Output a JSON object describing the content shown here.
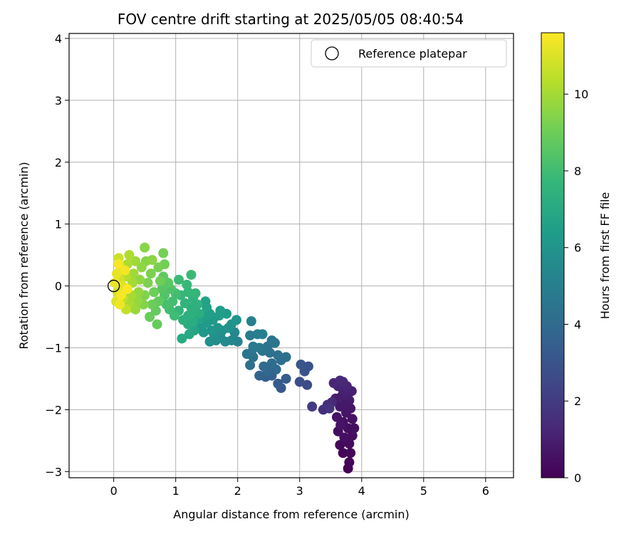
{
  "chart_data": {
    "type": "scatter",
    "title": "FOV centre drift starting at 2025/05/05 08:40:54",
    "xlabel": "Angular distance from reference (arcmin)",
    "ylabel": "Rotation from reference (arcmin)",
    "xlim": [
      -0.72,
      6.45
    ],
    "ylim": [
      -3.1,
      4.08
    ],
    "xticks": [
      "0",
      "1",
      "2",
      "3",
      "4",
      "5",
      "6"
    ],
    "yticks": [
      "−3",
      "−2",
      "−1",
      "0",
      "1",
      "2",
      "3",
      "4"
    ],
    "grid": true,
    "legend": {
      "placement": "top-right",
      "entries": [
        "Reference platepar"
      ]
    },
    "reference_point": {
      "x": 0,
      "y": 0,
      "label": "Reference platepar"
    },
    "colorbar": {
      "label": "Hours from first FF file",
      "colormap": "viridis",
      "range": [
        0,
        11.6
      ],
      "ticks": [
        "0",
        "2",
        "4",
        "6",
        "8",
        "10"
      ]
    },
    "points_note": "x = angular distance (arcmin), y = rotation (arcmin), c = hours from first FF file",
    "points": [
      {
        "x": 3.78,
        "y": -2.95,
        "c": 0.05
      },
      {
        "x": 3.8,
        "y": -2.85,
        "c": 0.1
      },
      {
        "x": 3.7,
        "y": -2.7,
        "c": 0.15
      },
      {
        "x": 3.82,
        "y": -2.7,
        "c": 0.2
      },
      {
        "x": 3.65,
        "y": -2.57,
        "c": 0.25
      },
      {
        "x": 3.75,
        "y": -2.5,
        "c": 0.3
      },
      {
        "x": 3.85,
        "y": -2.42,
        "c": 0.35
      },
      {
        "x": 3.62,
        "y": -2.35,
        "c": 0.4
      },
      {
        "x": 3.78,
        "y": -2.3,
        "c": 0.45
      },
      {
        "x": 3.7,
        "y": -2.2,
        "c": 0.5
      },
      {
        "x": 3.85,
        "y": -2.15,
        "c": 0.55
      },
      {
        "x": 3.6,
        "y": -2.12,
        "c": 0.6
      },
      {
        "x": 3.75,
        "y": -2.05,
        "c": 0.65
      },
      {
        "x": 3.82,
        "y": -1.98,
        "c": 0.7
      },
      {
        "x": 3.65,
        "y": -1.95,
        "c": 0.75
      },
      {
        "x": 3.72,
        "y": -1.9,
        "c": 0.8
      },
      {
        "x": 3.8,
        "y": -1.85,
        "c": 0.85
      },
      {
        "x": 3.58,
        "y": -1.82,
        "c": 0.9
      },
      {
        "x": 3.68,
        "y": -1.78,
        "c": 0.95
      },
      {
        "x": 3.78,
        "y": -1.75,
        "c": 1.0
      },
      {
        "x": 3.84,
        "y": -1.7,
        "c": 1.05
      },
      {
        "x": 3.7,
        "y": -1.68,
        "c": 1.1
      },
      {
        "x": 3.62,
        "y": -1.62,
        "c": 1.15
      },
      {
        "x": 3.76,
        "y": -1.62,
        "c": 1.2
      },
      {
        "x": 3.55,
        "y": -1.57,
        "c": 1.25
      },
      {
        "x": 3.7,
        "y": -1.55,
        "c": 1.3
      },
      {
        "x": 3.65,
        "y": -1.53,
        "c": 1.35
      },
      {
        "x": 3.8,
        "y": -2.55,
        "c": 0.4
      },
      {
        "x": 3.72,
        "y": -2.45,
        "c": 0.5
      },
      {
        "x": 3.66,
        "y": -2.25,
        "c": 0.6
      },
      {
        "x": 3.88,
        "y": -2.3,
        "c": 0.45
      },
      {
        "x": 3.52,
        "y": -1.88,
        "c": 1.4
      },
      {
        "x": 3.45,
        "y": -1.92,
        "c": 1.5
      },
      {
        "x": 3.38,
        "y": -2.0,
        "c": 1.6
      },
      {
        "x": 3.48,
        "y": -1.98,
        "c": 1.7
      },
      {
        "x": 3.2,
        "y": -1.95,
        "c": 2.0
      },
      {
        "x": 3.12,
        "y": -1.6,
        "c": 2.6
      },
      {
        "x": 3.0,
        "y": -1.55,
        "c": 2.7
      },
      {
        "x": 3.08,
        "y": -1.38,
        "c": 2.9
      },
      {
        "x": 3.14,
        "y": -1.3,
        "c": 3.0
      },
      {
        "x": 3.02,
        "y": -1.27,
        "c": 3.1
      },
      {
        "x": 2.7,
        "y": -1.65,
        "c": 3.2
      },
      {
        "x": 2.65,
        "y": -1.58,
        "c": 3.3
      },
      {
        "x": 2.78,
        "y": -1.5,
        "c": 3.4
      },
      {
        "x": 2.55,
        "y": -1.45,
        "c": 3.5
      },
      {
        "x": 2.45,
        "y": -1.47,
        "c": 3.6
      },
      {
        "x": 2.35,
        "y": -1.45,
        "c": 3.7
      },
      {
        "x": 2.48,
        "y": -1.38,
        "c": 3.8
      },
      {
        "x": 2.62,
        "y": -1.35,
        "c": 3.9
      },
      {
        "x": 2.42,
        "y": -1.3,
        "c": 4.0
      },
      {
        "x": 2.55,
        "y": -1.25,
        "c": 4.1
      },
      {
        "x": 2.7,
        "y": -1.2,
        "c": 4.15
      },
      {
        "x": 2.78,
        "y": -1.15,
        "c": 4.2
      },
      {
        "x": 2.65,
        "y": -1.12,
        "c": 4.25
      },
      {
        "x": 2.52,
        "y": -1.08,
        "c": 4.3
      },
      {
        "x": 2.4,
        "y": -1.05,
        "c": 4.35
      },
      {
        "x": 2.48,
        "y": -0.98,
        "c": 4.4
      },
      {
        "x": 2.6,
        "y": -0.92,
        "c": 4.45
      },
      {
        "x": 2.55,
        "y": -0.88,
        "c": 4.5
      },
      {
        "x": 2.2,
        "y": -1.28,
        "c": 4.2
      },
      {
        "x": 2.25,
        "y": -1.15,
        "c": 4.3
      },
      {
        "x": 2.15,
        "y": -1.1,
        "c": 4.4
      },
      {
        "x": 2.22,
        "y": -1.08,
        "c": 4.5
      },
      {
        "x": 2.35,
        "y": -1.0,
        "c": 4.6
      },
      {
        "x": 2.25,
        "y": -0.98,
        "c": 4.7
      },
      {
        "x": 2.2,
        "y": -0.8,
        "c": 4.8
      },
      {
        "x": 2.32,
        "y": -0.78,
        "c": 4.9
      },
      {
        "x": 2.4,
        "y": -0.78,
        "c": 5.0
      },
      {
        "x": 2.22,
        "y": -0.57,
        "c": 5.1
      },
      {
        "x": 2.0,
        "y": -0.9,
        "c": 5.2
      },
      {
        "x": 1.9,
        "y": -0.88,
        "c": 5.3
      },
      {
        "x": 1.95,
        "y": -0.75,
        "c": 5.4
      },
      {
        "x": 1.8,
        "y": -0.9,
        "c": 5.5
      },
      {
        "x": 1.72,
        "y": -0.82,
        "c": 5.6
      },
      {
        "x": 1.65,
        "y": -0.88,
        "c": 5.7
      },
      {
        "x": 1.55,
        "y": -0.9,
        "c": 5.75
      },
      {
        "x": 1.62,
        "y": -0.78,
        "c": 5.8
      },
      {
        "x": 1.75,
        "y": -0.72,
        "c": 5.85
      },
      {
        "x": 1.85,
        "y": -0.68,
        "c": 5.9
      },
      {
        "x": 1.9,
        "y": -0.62,
        "c": 5.95
      },
      {
        "x": 1.98,
        "y": -0.55,
        "c": 6.0
      },
      {
        "x": 1.68,
        "y": -0.68,
        "c": 6.05
      },
      {
        "x": 1.58,
        "y": -0.72,
        "c": 6.1
      },
      {
        "x": 1.45,
        "y": -0.75,
        "c": 6.15
      },
      {
        "x": 1.4,
        "y": -0.68,
        "c": 6.2
      },
      {
        "x": 1.5,
        "y": -0.6,
        "c": 6.25
      },
      {
        "x": 1.6,
        "y": -0.55,
        "c": 6.3
      },
      {
        "x": 1.7,
        "y": -0.48,
        "c": 6.35
      },
      {
        "x": 1.82,
        "y": -0.45,
        "c": 6.4
      },
      {
        "x": 1.72,
        "y": -0.4,
        "c": 6.45
      },
      {
        "x": 1.55,
        "y": -0.45,
        "c": 6.5
      },
      {
        "x": 1.45,
        "y": -0.5,
        "c": 6.55
      },
      {
        "x": 1.35,
        "y": -0.55,
        "c": 6.6
      },
      {
        "x": 1.5,
        "y": -0.35,
        "c": 6.65
      },
      {
        "x": 1.48,
        "y": -0.25,
        "c": 6.7
      },
      {
        "x": 1.3,
        "y": -0.72,
        "c": 6.8
      },
      {
        "x": 1.22,
        "y": -0.78,
        "c": 6.9
      },
      {
        "x": 1.1,
        "y": -0.85,
        "c": 7.0
      },
      {
        "x": 1.2,
        "y": -0.62,
        "c": 7.1
      },
      {
        "x": 1.28,
        "y": -0.58,
        "c": 7.15
      },
      {
        "x": 1.38,
        "y": -0.45,
        "c": 7.2
      },
      {
        "x": 1.3,
        "y": -0.42,
        "c": 7.25
      },
      {
        "x": 1.2,
        "y": -0.48,
        "c": 7.3
      },
      {
        "x": 1.12,
        "y": -0.55,
        "c": 7.35
      },
      {
        "x": 1.25,
        "y": -0.35,
        "c": 7.4
      },
      {
        "x": 1.35,
        "y": -0.3,
        "c": 7.45
      },
      {
        "x": 1.28,
        "y": -0.2,
        "c": 7.5
      },
      {
        "x": 1.15,
        "y": -0.28,
        "c": 7.55
      },
      {
        "x": 1.05,
        "y": -0.4,
        "c": 7.6
      },
      {
        "x": 1.32,
        "y": -0.12,
        "c": 7.65
      },
      {
        "x": 1.2,
        "y": -0.1,
        "c": 7.7
      },
      {
        "x": 1.08,
        "y": -0.15,
        "c": 7.75
      },
      {
        "x": 1.18,
        "y": 0.02,
        "c": 7.8
      },
      {
        "x": 1.25,
        "y": 0.18,
        "c": 7.85
      },
      {
        "x": 1.05,
        "y": 0.1,
        "c": 7.9
      },
      {
        "x": 0.98,
        "y": -0.48,
        "c": 7.95
      },
      {
        "x": 0.9,
        "y": -0.38,
        "c": 8.0
      },
      {
        "x": 0.95,
        "y": -0.25,
        "c": 8.05
      },
      {
        "x": 1.0,
        "y": -0.12,
        "c": 8.1
      },
      {
        "x": 0.85,
        "y": -0.3,
        "c": 8.2
      },
      {
        "x": 0.92,
        "y": -0.05,
        "c": 8.3
      },
      {
        "x": 0.82,
        "y": -0.15,
        "c": 8.4
      },
      {
        "x": 0.78,
        "y": -0.05,
        "c": 8.5
      },
      {
        "x": 0.88,
        "y": 0.05,
        "c": 8.6
      },
      {
        "x": 0.8,
        "y": 0.15,
        "c": 8.7
      },
      {
        "x": 0.72,
        "y": -0.25,
        "c": 8.75
      },
      {
        "x": 0.68,
        "y": -0.4,
        "c": 8.8
      },
      {
        "x": 0.7,
        "y": -0.62,
        "c": 8.85
      },
      {
        "x": 0.58,
        "y": -0.5,
        "c": 8.9
      },
      {
        "x": 0.62,
        "y": -0.3,
        "c": 8.95
      },
      {
        "x": 0.65,
        "y": -0.1,
        "c": 9.0
      },
      {
        "x": 0.75,
        "y": 0.08,
        "c": 9.05
      },
      {
        "x": 0.82,
        "y": 0.35,
        "c": 9.1
      },
      {
        "x": 0.8,
        "y": 0.53,
        "c": 9.15
      },
      {
        "x": 0.72,
        "y": 0.3,
        "c": 9.2
      },
      {
        "x": 0.6,
        "y": 0.2,
        "c": 9.25
      },
      {
        "x": 0.55,
        "y": 0.05,
        "c": 9.3
      },
      {
        "x": 0.5,
        "y": -0.15,
        "c": 9.35
      },
      {
        "x": 0.48,
        "y": -0.3,
        "c": 9.4
      },
      {
        "x": 0.52,
        "y": 0.4,
        "c": 9.45
      },
      {
        "x": 0.5,
        "y": 0.62,
        "c": 9.5
      },
      {
        "x": 0.62,
        "y": 0.42,
        "c": 9.55
      },
      {
        "x": 0.45,
        "y": 0.3,
        "c": 9.6
      },
      {
        "x": 0.42,
        "y": 0.1,
        "c": 9.65
      },
      {
        "x": 0.4,
        "y": -0.1,
        "c": 9.7
      },
      {
        "x": 0.38,
        "y": -0.25,
        "c": 9.75
      },
      {
        "x": 0.35,
        "y": -0.38,
        "c": 9.8
      },
      {
        "x": 0.3,
        "y": -0.35,
        "c": 9.85
      },
      {
        "x": 0.35,
        "y": 0.4,
        "c": 9.9
      },
      {
        "x": 0.32,
        "y": 0.2,
        "c": 9.95
      },
      {
        "x": 0.3,
        "y": 0.05,
        "c": 10.0
      },
      {
        "x": 0.28,
        "y": -0.15,
        "c": 10.05
      },
      {
        "x": 0.25,
        "y": -0.28,
        "c": 10.1
      },
      {
        "x": 0.22,
        "y": 0.35,
        "c": 10.15
      },
      {
        "x": 0.25,
        "y": 0.5,
        "c": 10.2
      },
      {
        "x": 0.2,
        "y": 0.15,
        "c": 10.3
      },
      {
        "x": 0.18,
        "y": -0.05,
        "c": 10.4
      },
      {
        "x": 0.15,
        "y": -0.2,
        "c": 10.5
      },
      {
        "x": 0.2,
        "y": -0.38,
        "c": 10.55
      },
      {
        "x": 0.12,
        "y": 0.3,
        "c": 10.6
      },
      {
        "x": 0.08,
        "y": 0.45,
        "c": 10.7
      },
      {
        "x": 0.1,
        "y": 0.1,
        "c": 10.8
      },
      {
        "x": 0.06,
        "y": -0.1,
        "c": 10.9
      },
      {
        "x": 0.04,
        "y": -0.25,
        "c": 11.0
      },
      {
        "x": 0.14,
        "y": 0.0,
        "c": 11.1
      },
      {
        "x": 0.05,
        "y": 0.2,
        "c": 11.2
      },
      {
        "x": 0.02,
        "y": 0.05,
        "c": 11.3
      },
      {
        "x": 0.1,
        "y": -0.3,
        "c": 11.35
      },
      {
        "x": 0.18,
        "y": 0.25,
        "c": 11.4
      },
      {
        "x": 0.12,
        "y": -0.15,
        "c": 11.45
      },
      {
        "x": 0.08,
        "y": 0.35,
        "c": 11.5
      },
      {
        "x": 0.22,
        "y": -0.05,
        "c": 11.55
      }
    ]
  }
}
